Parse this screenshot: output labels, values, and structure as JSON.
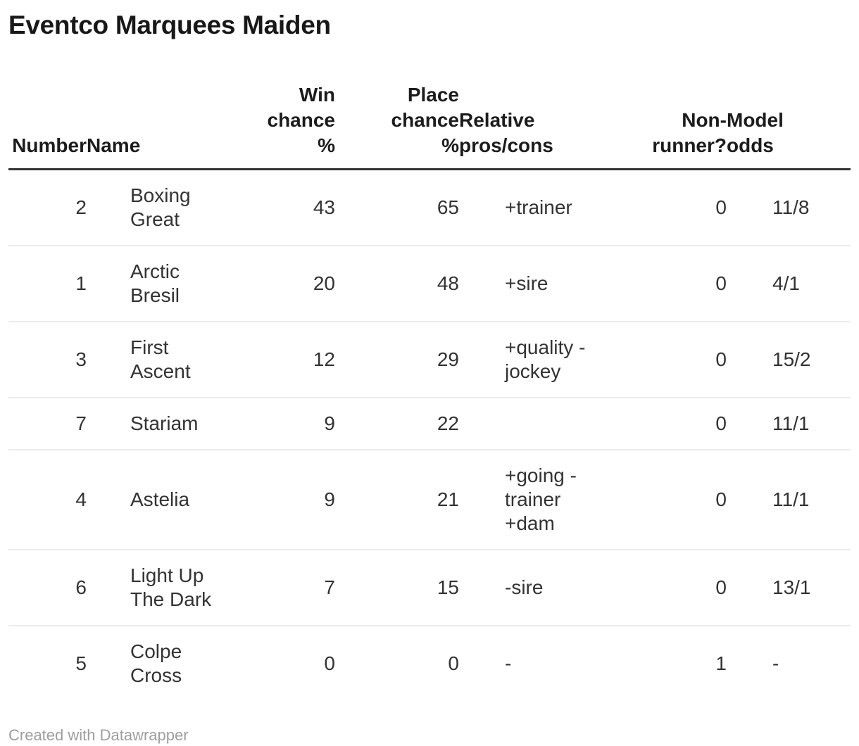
{
  "chart_data": {
    "type": "table",
    "title": "Eventco Marquees Maiden",
    "columns": [
      "Number",
      "Name",
      "Win chance %",
      "Place chance %",
      "Relative pros/cons",
      "Non-runner?",
      "Model odds"
    ],
    "rows": [
      [
        "2",
        "Boxing Great",
        "43",
        "65",
        "+trainer",
        "0",
        "11/8"
      ],
      [
        "1",
        "Arctic Bresil",
        "20",
        "48",
        "+sire",
        "0",
        "4/1"
      ],
      [
        "3",
        "First Ascent",
        "12",
        "29",
        "+quality -jockey",
        "0",
        "15/2"
      ],
      [
        "7",
        "Stariam",
        "9",
        "22",
        "",
        "0",
        "11/1"
      ],
      [
        "4",
        "Astelia",
        "9",
        "21",
        "+going -trainer +dam",
        "0",
        "11/1"
      ],
      [
        "6",
        "Light Up The Dark",
        "7",
        "15",
        "-sire",
        "0",
        "13/1"
      ],
      [
        "5",
        "Colpe Cross",
        "0",
        "0",
        "-",
        "1",
        "-"
      ]
    ]
  },
  "footer": {
    "credit": "Created with Datawrapper"
  },
  "colors": {
    "title_text": "#181818",
    "header_text": "#1c1c1c",
    "body_text": "#333333",
    "header_rule": "#333333",
    "row_separator": "#ebebeb",
    "credit_text": "#9e9e9e",
    "background": "#ffffff"
  }
}
